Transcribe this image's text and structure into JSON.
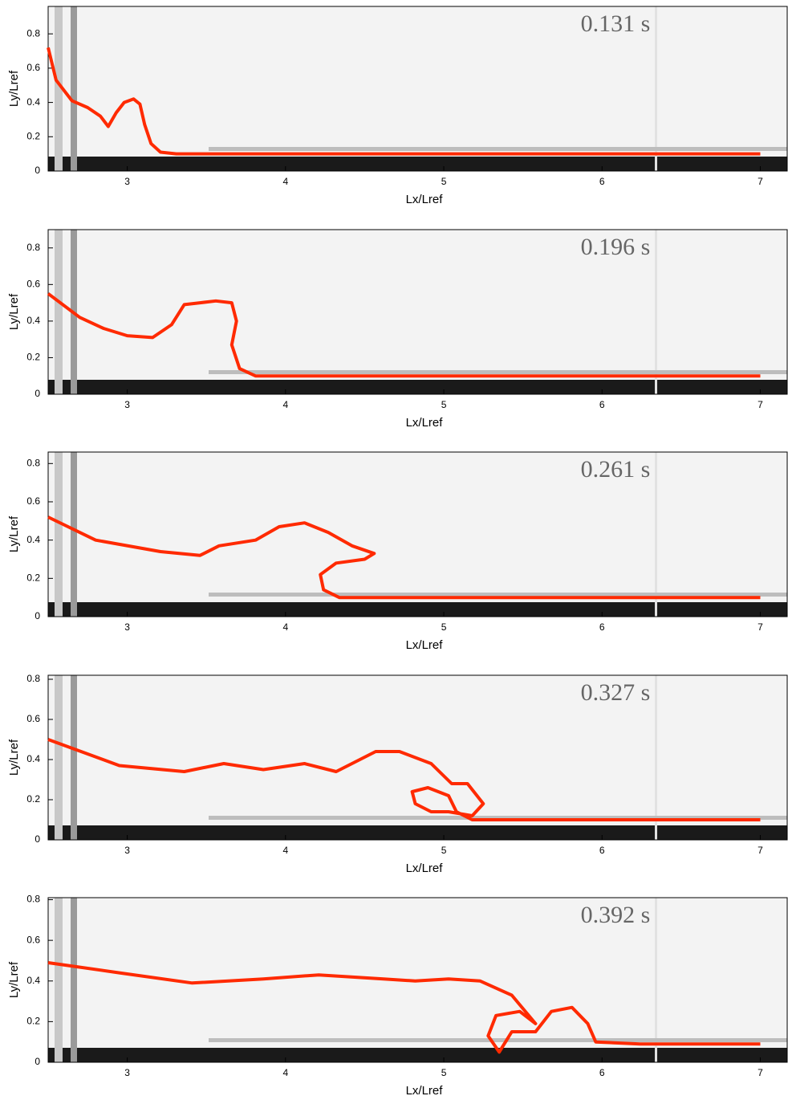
{
  "chart_data": [
    {
      "type": "line",
      "annotation": "0.131 s",
      "xlabel": "Lx/Lref",
      "ylabel": "Ly/Lref",
      "color": "#ff2a00",
      "xlim": [
        2.5,
        7.17
      ],
      "ylim": [
        0,
        0.96
      ],
      "xticks": [
        3,
        4,
        5,
        6,
        7
      ],
      "yticks": [
        0,
        0.2,
        0.4,
        0.6,
        0.8
      ],
      "x": [
        2.5,
        2.55,
        2.65,
        2.75,
        2.83,
        2.88,
        2.93,
        2.98,
        3.04,
        3.08,
        3.11,
        3.15,
        3.21,
        3.31,
        7.0
      ],
      "values": [
        0.72,
        0.53,
        0.41,
        0.37,
        0.32,
        0.26,
        0.34,
        0.4,
        0.42,
        0.39,
        0.27,
        0.16,
        0.11,
        0.1,
        0.1
      ]
    },
    {
      "type": "line",
      "annotation": "0.196 s",
      "xlabel": "Lx/Lref",
      "ylabel": "Ly/Lref",
      "color": "#ff2a00",
      "xlim": [
        2.5,
        7.17
      ],
      "ylim": [
        0,
        0.9
      ],
      "xticks": [
        3,
        4,
        5,
        6,
        7
      ],
      "yticks": [
        0,
        0.2,
        0.4,
        0.6,
        0.8
      ],
      "x": [
        2.5,
        2.7,
        2.85,
        3.0,
        3.16,
        3.28,
        3.36,
        3.46,
        3.56,
        3.66,
        3.69,
        3.66,
        3.71,
        3.81,
        7.0
      ],
      "values": [
        0.55,
        0.42,
        0.36,
        0.32,
        0.31,
        0.38,
        0.49,
        0.5,
        0.51,
        0.5,
        0.4,
        0.27,
        0.14,
        0.1,
        0.1
      ]
    },
    {
      "type": "line",
      "annotation": "0.261 s",
      "xlabel": "Lx/Lref",
      "ylabel": "Ly/Lref",
      "color": "#ff2a00",
      "xlim": [
        2.5,
        7.17
      ],
      "ylim": [
        0,
        0.86
      ],
      "xticks": [
        3,
        4,
        5,
        6,
        7
      ],
      "yticks": [
        0,
        0.2,
        0.4,
        0.6,
        0.8
      ],
      "x": [
        2.5,
        2.8,
        3.21,
        3.46,
        3.58,
        3.81,
        3.96,
        4.12,
        4.27,
        4.42,
        4.56,
        4.5,
        4.32,
        4.22,
        4.24,
        4.34,
        7.0
      ],
      "values": [
        0.52,
        0.4,
        0.34,
        0.32,
        0.37,
        0.4,
        0.47,
        0.49,
        0.44,
        0.37,
        0.33,
        0.3,
        0.28,
        0.22,
        0.14,
        0.1,
        0.1
      ]
    },
    {
      "type": "line",
      "annotation": "0.327 s",
      "xlabel": "Lx/Lref",
      "ylabel": "Ly/Lref",
      "color": "#ff2a00",
      "xlim": [
        2.5,
        7.17
      ],
      "ylim": [
        0,
        0.82
      ],
      "xticks": [
        3,
        4,
        5,
        6,
        7
      ],
      "yticks": [
        0,
        0.2,
        0.4,
        0.6,
        0.8
      ],
      "x": [
        2.5,
        2.95,
        3.36,
        3.61,
        3.86,
        4.12,
        4.32,
        4.57,
        4.72,
        4.92,
        5.05,
        5.15,
        5.25,
        5.18,
        5.03,
        4.92,
        4.82,
        4.8,
        4.9,
        5.03,
        5.08,
        5.18,
        7.0
      ],
      "values": [
        0.5,
        0.37,
        0.34,
        0.38,
        0.35,
        0.38,
        0.34,
        0.44,
        0.44,
        0.38,
        0.28,
        0.28,
        0.18,
        0.12,
        0.14,
        0.14,
        0.18,
        0.24,
        0.26,
        0.22,
        0.14,
        0.1,
        0.1
      ]
    },
    {
      "type": "line",
      "annotation": "0.392 s",
      "xlabel": "Lx/Lref",
      "ylabel": "Ly/Lref",
      "color": "#ff2a00",
      "xlim": [
        2.5,
        7.17
      ],
      "ylim": [
        0,
        0.81
      ],
      "xticks": [
        3,
        4,
        5,
        6,
        7
      ],
      "yticks": [
        0,
        0.2,
        0.4,
        0.6,
        0.8
      ],
      "x": [
        2.5,
        2.95,
        3.41,
        3.86,
        4.21,
        4.62,
        4.82,
        5.03,
        5.23,
        5.43,
        5.58,
        5.48,
        5.33,
        5.28,
        5.35,
        5.43,
        5.58,
        5.68,
        5.81,
        5.91,
        5.96,
        6.24,
        7.0
      ],
      "values": [
        0.49,
        0.44,
        0.39,
        0.41,
        0.43,
        0.41,
        0.4,
        0.41,
        0.4,
        0.33,
        0.19,
        0.25,
        0.23,
        0.13,
        0.05,
        0.15,
        0.15,
        0.25,
        0.27,
        0.19,
        0.1,
        0.09,
        0.09
      ]
    }
  ]
}
